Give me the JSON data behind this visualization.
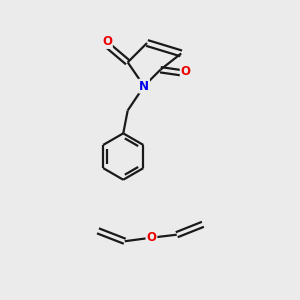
{
  "bg_color": "#ebebeb",
  "bond_color": "#1a1a1a",
  "N_color": "#0000ee",
  "O_color": "#ee0000",
  "line_width": 1.6,
  "fig_width": 3.0,
  "fig_height": 3.0,
  "dpi": 100,
  "xlim": [
    0,
    10
  ],
  "ylim": [
    0,
    10
  ]
}
